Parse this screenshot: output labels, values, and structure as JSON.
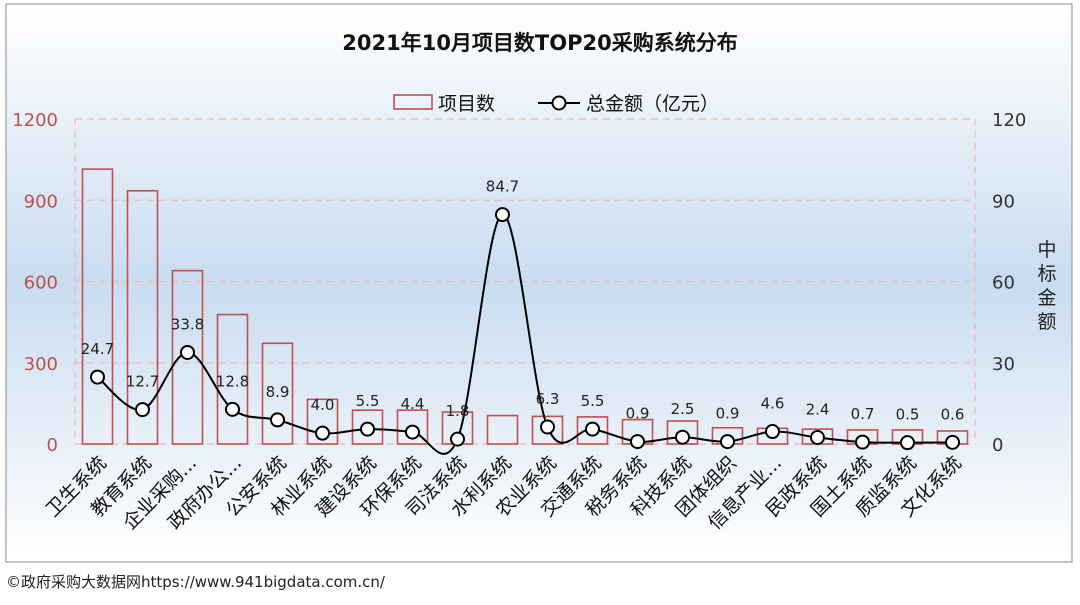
{
  "chart_data": {
    "type": "bar+line",
    "title": "2021年10月项目数TOP20采购系统分布",
    "legend": {
      "bar_label": "项目数",
      "line_label": "总金额（亿元）",
      "placement": "top-center"
    },
    "categories": [
      "卫生系统",
      "教育系统",
      "企业采购...",
      "政府办公...",
      "公安系统",
      "林业系统",
      "建设系统",
      "环保系统",
      "司法系统",
      "水利系统",
      "农业系统",
      "交通系统",
      "税务系统",
      "科技系统",
      "团体组织",
      "信息产业...",
      "民政系统",
      "国土系统",
      "质监系统",
      "文化系统"
    ],
    "series": [
      {
        "name": "项目数",
        "axis": "left",
        "type": "bar",
        "values": [
          1015,
          935,
          640,
          478,
          372,
          165,
          125,
          125,
          118,
          105,
          102,
          100,
          90,
          85,
          60,
          58,
          55,
          52,
          52,
          48
        ]
      },
      {
        "name": "总金额（亿元）",
        "axis": "right",
        "type": "line",
        "values": [
          24.7,
          12.7,
          33.8,
          12.8,
          8.9,
          4.0,
          5.5,
          4.4,
          1.8,
          84.7,
          6.3,
          5.5,
          0.9,
          2.5,
          0.9,
          4.6,
          2.4,
          0.7,
          0.5,
          0.6
        ],
        "labels": [
          "24.7",
          "12.7",
          "33.8",
          "12.8",
          "8.9",
          "4.0",
          "5.5",
          "4.4",
          "1.8",
          "84.7",
          "6.3",
          "5.5",
          "0.9",
          "2.5",
          "0.9",
          "4.6",
          "2.4",
          "0.7",
          "0.5",
          "0.6"
        ]
      }
    ],
    "y_left": {
      "ticks": [
        "0",
        "300",
        "600",
        "900",
        "1200"
      ],
      "min": 0,
      "max": 1200
    },
    "y_right": {
      "ticks": [
        "0",
        "30",
        "60",
        "90",
        "120"
      ],
      "min": 0,
      "max": 120,
      "label": "中标金额"
    },
    "grid": true,
    "colors": {
      "bar_stroke": "#c0504d",
      "left_axis": "#c0504d",
      "line": "#000000",
      "grid": "#f2b8b8"
    }
  },
  "source": "©政府采购大数据网https://www.941bigdata.com.cn/"
}
